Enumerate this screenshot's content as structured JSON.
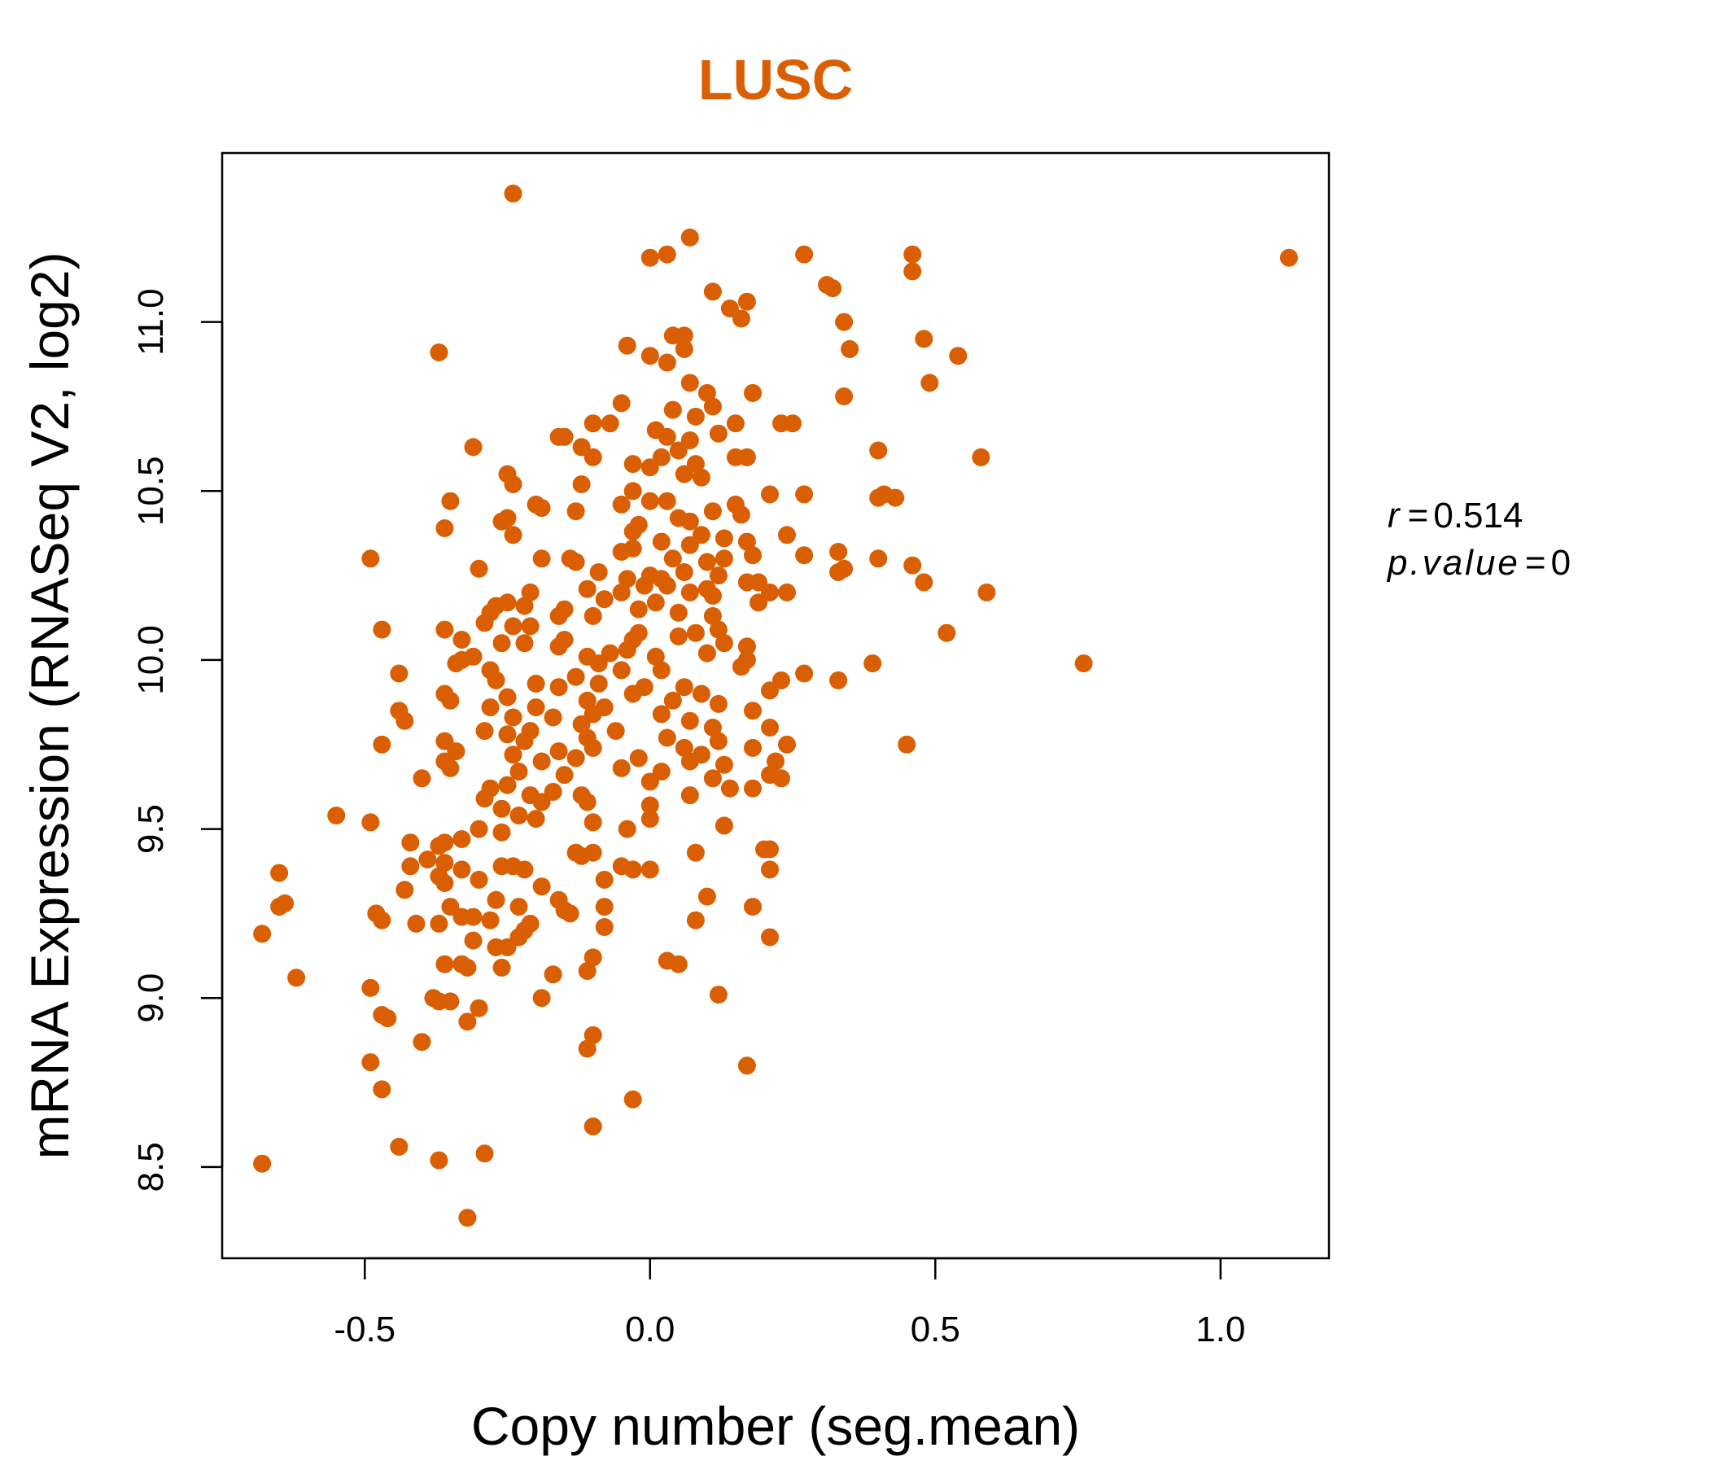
{
  "chart_data": {
    "type": "scatter",
    "title": "LUSC",
    "xlabel": "Copy number (seg.mean)",
    "ylabel": "mRNA Expression (RNASeq V2, log2)",
    "xlim": [
      -0.75,
      1.19
    ],
    "ylim": [
      8.23,
      11.5
    ],
    "x_ticks": [
      "-0.5",
      "0.0",
      "0.5",
      "1.0"
    ],
    "y_ticks": [
      "8.5",
      "9.0",
      "9.5",
      "10.0",
      "10.5",
      "11.0"
    ],
    "grid": false,
    "legend": "none",
    "point_color": "#d95f02",
    "stats": {
      "r_label": "r",
      "r_value": "0.514",
      "p_label": "p.value",
      "p_value": "0"
    },
    "points": [
      [
        1.12,
        11.19
      ],
      [
        0.76,
        9.99
      ],
      [
        -0.24,
        11.38
      ],
      [
        0.07,
        11.25
      ],
      [
        0.0,
        11.19
      ],
      [
        0.03,
        11.2
      ],
      [
        0.27,
        11.2
      ],
      [
        0.46,
        11.2
      ],
      [
        0.46,
        11.15
      ],
      [
        0.31,
        11.11
      ],
      [
        0.32,
        11.1
      ],
      [
        0.11,
        11.09
      ],
      [
        0.17,
        11.06
      ],
      [
        0.14,
        11.04
      ],
      [
        0.16,
        11.01
      ],
      [
        0.34,
        11.0
      ],
      [
        0.48,
        10.95
      ],
      [
        0.04,
        10.96
      ],
      [
        0.06,
        10.96
      ],
      [
        -0.37,
        10.91
      ],
      [
        -0.04,
        10.93
      ],
      [
        0.0,
        10.9
      ],
      [
        0.06,
        10.92
      ],
      [
        0.35,
        10.92
      ],
      [
        0.54,
        10.9
      ],
      [
        0.03,
        10.88
      ],
      [
        0.49,
        10.82
      ],
      [
        0.07,
        10.82
      ],
      [
        0.1,
        10.79
      ],
      [
        0.18,
        10.79
      ],
      [
        0.34,
        10.78
      ],
      [
        -0.05,
        10.76
      ],
      [
        0.11,
        10.75
      ],
      [
        0.04,
        10.74
      ],
      [
        0.08,
        10.72
      ],
      [
        -0.1,
        10.7
      ],
      [
        -0.07,
        10.7
      ],
      [
        0.15,
        10.7
      ],
      [
        0.23,
        10.7
      ],
      [
        0.25,
        10.7
      ],
      [
        0.01,
        10.68
      ],
      [
        0.12,
        10.67
      ],
      [
        0.03,
        10.66
      ],
      [
        -0.16,
        10.66
      ],
      [
        -0.15,
        10.66
      ],
      [
        0.07,
        10.65
      ],
      [
        -0.12,
        10.63
      ],
      [
        0.05,
        10.62
      ],
      [
        -0.31,
        10.63
      ],
      [
        0.4,
        10.62
      ],
      [
        0.17,
        10.6
      ],
      [
        0.15,
        10.6
      ],
      [
        0.58,
        10.6
      ],
      [
        -0.1,
        10.6
      ],
      [
        0.02,
        10.6
      ],
      [
        -0.03,
        10.58
      ],
      [
        0.08,
        10.58
      ],
      [
        0.0,
        10.57
      ],
      [
        -0.25,
        10.55
      ],
      [
        0.06,
        10.55
      ],
      [
        0.09,
        10.54
      ],
      [
        -0.24,
        10.52
      ],
      [
        -0.12,
        10.52
      ],
      [
        -0.03,
        10.5
      ],
      [
        0.21,
        10.49
      ],
      [
        0.27,
        10.49
      ],
      [
        0.4,
        10.48
      ],
      [
        0.41,
        10.49
      ],
      [
        0.43,
        10.48
      ],
      [
        0.0,
        10.47
      ],
      [
        -0.05,
        10.46
      ],
      [
        0.03,
        10.47
      ],
      [
        0.15,
        10.46
      ],
      [
        -0.2,
        10.46
      ],
      [
        -0.19,
        10.45
      ],
      [
        -0.35,
        10.47
      ],
      [
        0.11,
        10.44
      ],
      [
        0.16,
        10.43
      ],
      [
        -0.13,
        10.44
      ],
      [
        -0.25,
        10.42
      ],
      [
        0.05,
        10.42
      ],
      [
        -0.26,
        10.41
      ],
      [
        0.07,
        10.41
      ],
      [
        -0.02,
        10.4
      ],
      [
        -0.36,
        10.39
      ],
      [
        -0.03,
        10.38
      ],
      [
        -0.24,
        10.37
      ],
      [
        0.09,
        10.37
      ],
      [
        0.24,
        10.37
      ],
      [
        0.13,
        10.36
      ],
      [
        0.02,
        10.35
      ],
      [
        0.17,
        10.35
      ],
      [
        0.07,
        10.34
      ],
      [
        -0.03,
        10.33
      ],
      [
        0.33,
        10.32
      ],
      [
        -0.05,
        10.32
      ],
      [
        0.18,
        10.31
      ],
      [
        0.27,
        10.31
      ],
      [
        0.13,
        10.3
      ],
      [
        -0.19,
        10.3
      ],
      [
        -0.14,
        10.3
      ],
      [
        0.04,
        10.3
      ],
      [
        0.1,
        10.29
      ],
      [
        -0.13,
        10.29
      ],
      [
        0.4,
        10.3
      ],
      [
        0.46,
        10.28
      ],
      [
        0.34,
        10.27
      ],
      [
        -0.49,
        10.3
      ],
      [
        -0.3,
        10.27
      ],
      [
        0.33,
        10.26
      ],
      [
        0.06,
        10.26
      ],
      [
        0.0,
        10.25
      ],
      [
        -0.09,
        10.26
      ],
      [
        0.12,
        10.25
      ],
      [
        -0.04,
        10.24
      ],
      [
        0.02,
        10.24
      ],
      [
        0.17,
        10.23
      ],
      [
        0.19,
        10.23
      ],
      [
        0.48,
        10.23
      ],
      [
        -0.01,
        10.22
      ],
      [
        -0.11,
        10.21
      ],
      [
        0.03,
        10.22
      ],
      [
        0.1,
        10.21
      ],
      [
        0.21,
        10.2
      ],
      [
        0.24,
        10.2
      ],
      [
        0.59,
        10.2
      ],
      [
        -0.21,
        10.2
      ],
      [
        -0.05,
        10.2
      ],
      [
        0.07,
        10.2
      ],
      [
        0.11,
        10.19
      ],
      [
        -0.08,
        10.18
      ],
      [
        -0.27,
        10.16
      ],
      [
        -0.25,
        10.17
      ],
      [
        -0.22,
        10.16
      ],
      [
        0.01,
        10.17
      ],
      [
        0.19,
        10.17
      ],
      [
        -0.15,
        10.15
      ],
      [
        -0.02,
        10.15
      ],
      [
        0.05,
        10.14
      ],
      [
        -0.28,
        10.14
      ],
      [
        -0.16,
        10.13
      ],
      [
        0.11,
        10.13
      ],
      [
        -0.1,
        10.13
      ],
      [
        -0.29,
        10.11
      ],
      [
        -0.24,
        10.1
      ],
      [
        -0.21,
        10.1
      ],
      [
        0.12,
        10.09
      ],
      [
        -0.47,
        10.09
      ],
      [
        0.52,
        10.08
      ],
      [
        -0.36,
        10.09
      ],
      [
        0.08,
        10.08
      ],
      [
        -0.02,
        10.08
      ],
      [
        0.05,
        10.07
      ],
      [
        -0.15,
        10.06
      ],
      [
        -0.33,
        10.06
      ],
      [
        0.13,
        10.05
      ],
      [
        -0.03,
        10.06
      ],
      [
        -0.26,
        10.05
      ],
      [
        -0.22,
        10.05
      ],
      [
        -0.16,
        10.04
      ],
      [
        0.17,
        10.04
      ],
      [
        -0.04,
        10.03
      ],
      [
        -0.07,
        10.02
      ],
      [
        0.1,
        10.02
      ],
      [
        -0.31,
        10.01
      ],
      [
        0.01,
        10.01
      ],
      [
        -0.11,
        10.01
      ],
      [
        0.17,
        10.0
      ],
      [
        -0.33,
        10.0
      ],
      [
        0.39,
        9.99
      ],
      [
        -0.34,
        9.99
      ],
      [
        -0.09,
        9.99
      ],
      [
        0.16,
        9.98
      ],
      [
        -0.28,
        9.97
      ],
      [
        -0.05,
        9.97
      ],
      [
        0.02,
        9.97
      ],
      [
        0.27,
        9.96
      ],
      [
        -0.44,
        9.96
      ],
      [
        -0.13,
        9.95
      ],
      [
        0.23,
        9.94
      ],
      [
        0.33,
        9.94
      ],
      [
        -0.27,
        9.94
      ],
      [
        -0.2,
        9.93
      ],
      [
        -0.09,
        9.93
      ],
      [
        -0.01,
        9.92
      ],
      [
        0.06,
        9.92
      ],
      [
        -0.16,
        9.92
      ],
      [
        0.21,
        9.91
      ],
      [
        -0.36,
        9.9
      ],
      [
        0.09,
        9.9
      ],
      [
        -0.03,
        9.9
      ],
      [
        -0.25,
        9.89
      ],
      [
        -0.11,
        9.88
      ],
      [
        0.04,
        9.88
      ],
      [
        -0.35,
        9.88
      ],
      [
        0.12,
        9.87
      ],
      [
        -0.28,
        9.86
      ],
      [
        -0.2,
        9.86
      ],
      [
        -0.08,
        9.86
      ],
      [
        0.18,
        9.85
      ],
      [
        -0.44,
        9.85
      ],
      [
        0.02,
        9.84
      ],
      [
        -0.1,
        9.84
      ],
      [
        -0.24,
        9.83
      ],
      [
        -0.17,
        9.83
      ],
      [
        0.07,
        9.82
      ],
      [
        -0.43,
        9.82
      ],
      [
        -0.12,
        9.81
      ],
      [
        0.21,
        9.8
      ],
      [
        0.11,
        9.8
      ],
      [
        -0.29,
        9.79
      ],
      [
        -0.21,
        9.79
      ],
      [
        -0.06,
        9.79
      ],
      [
        -0.25,
        9.78
      ],
      [
        -0.11,
        9.77
      ],
      [
        0.03,
        9.77
      ],
      [
        -0.36,
        9.76
      ],
      [
        -0.22,
        9.76
      ],
      [
        0.12,
        9.76
      ],
      [
        0.24,
        9.75
      ],
      [
        -0.47,
        9.75
      ],
      [
        0.45,
        9.75
      ],
      [
        -0.1,
        9.74
      ],
      [
        0.06,
        9.74
      ],
      [
        0.18,
        9.74
      ],
      [
        -0.16,
        9.73
      ],
      [
        -0.34,
        9.73
      ],
      [
        -0.24,
        9.72
      ],
      [
        0.09,
        9.72
      ],
      [
        -0.13,
        9.71
      ],
      [
        -0.02,
        9.71
      ],
      [
        0.22,
        9.7
      ],
      [
        -0.36,
        9.7
      ],
      [
        -0.19,
        9.7
      ],
      [
        0.07,
        9.7
      ],
      [
        0.13,
        9.69
      ],
      [
        -0.35,
        9.68
      ],
      [
        -0.05,
        9.68
      ],
      [
        0.02,
        9.67
      ],
      [
        -0.23,
        9.67
      ],
      [
        0.21,
        9.66
      ],
      [
        -0.15,
        9.66
      ],
      [
        0.11,
        9.65
      ],
      [
        0.23,
        9.65
      ],
      [
        -0.4,
        9.65
      ],
      [
        0.0,
        9.64
      ],
      [
        -0.25,
        9.63
      ],
      [
        -0.28,
        9.62
      ],
      [
        0.14,
        9.62
      ],
      [
        0.18,
        9.62
      ],
      [
        -0.17,
        9.61
      ],
      [
        -0.21,
        9.6
      ],
      [
        -0.12,
        9.6
      ],
      [
        0.07,
        9.6
      ],
      [
        -0.29,
        9.59
      ],
      [
        -0.19,
        9.58
      ],
      [
        -0.11,
        9.58
      ],
      [
        0.0,
        9.57
      ],
      [
        -0.26,
        9.56
      ],
      [
        -0.55,
        9.54
      ],
      [
        -0.23,
        9.54
      ],
      [
        0.0,
        9.53
      ],
      [
        -0.2,
        9.53
      ],
      [
        -0.49,
        9.52
      ],
      [
        -0.1,
        9.52
      ],
      [
        0.13,
        9.51
      ],
      [
        -0.3,
        9.5
      ],
      [
        -0.04,
        9.5
      ],
      [
        -0.26,
        9.49
      ],
      [
        -0.33,
        9.47
      ],
      [
        -0.42,
        9.46
      ],
      [
        -0.36,
        9.46
      ],
      [
        0.2,
        9.44
      ],
      [
        0.21,
        9.44
      ],
      [
        -0.37,
        9.45
      ],
      [
        -0.13,
        9.43
      ],
      [
        -0.1,
        9.43
      ],
      [
        0.08,
        9.43
      ],
      [
        -0.12,
        9.42
      ],
      [
        -0.39,
        9.41
      ],
      [
        -0.36,
        9.4
      ],
      [
        -0.26,
        9.39
      ],
      [
        -0.24,
        9.39
      ],
      [
        -0.22,
        9.38
      ],
      [
        -0.05,
        9.39
      ],
      [
        -0.03,
        9.38
      ],
      [
        0.0,
        9.38
      ],
      [
        0.21,
        9.38
      ],
      [
        -0.65,
        9.37
      ],
      [
        -0.42,
        9.39
      ],
      [
        -0.33,
        9.38
      ],
      [
        -0.37,
        9.36
      ],
      [
        -0.3,
        9.35
      ],
      [
        -0.08,
        9.35
      ],
      [
        -0.36,
        9.34
      ],
      [
        -0.19,
        9.33
      ],
      [
        -0.43,
        9.32
      ],
      [
        0.1,
        9.3
      ],
      [
        -0.16,
        9.29
      ],
      [
        -0.27,
        9.29
      ],
      [
        -0.64,
        9.28
      ],
      [
        -0.65,
        9.27
      ],
      [
        0.18,
        9.27
      ],
      [
        -0.08,
        9.27
      ],
      [
        -0.35,
        9.27
      ],
      [
        -0.23,
        9.27
      ],
      [
        -0.15,
        9.26
      ],
      [
        -0.14,
        9.25
      ],
      [
        -0.48,
        9.25
      ],
      [
        -0.31,
        9.24
      ],
      [
        -0.33,
        9.24
      ],
      [
        -0.28,
        9.23
      ],
      [
        0.08,
        9.23
      ],
      [
        -0.47,
        9.23
      ],
      [
        -0.37,
        9.22
      ],
      [
        -0.41,
        9.22
      ],
      [
        -0.21,
        9.22
      ],
      [
        -0.08,
        9.21
      ],
      [
        -0.22,
        9.2
      ],
      [
        -0.68,
        9.19
      ],
      [
        -0.23,
        9.18
      ],
      [
        0.21,
        9.18
      ],
      [
        -0.31,
        9.17
      ],
      [
        -0.27,
        9.15
      ],
      [
        -0.25,
        9.15
      ],
      [
        -0.1,
        9.12
      ],
      [
        0.03,
        9.11
      ],
      [
        0.05,
        9.1
      ],
      [
        -0.36,
        9.1
      ],
      [
        -0.33,
        9.1
      ],
      [
        -0.32,
        9.09
      ],
      [
        -0.26,
        9.09
      ],
      [
        -0.11,
        9.08
      ],
      [
        -0.17,
        9.07
      ],
      [
        -0.62,
        9.06
      ],
      [
        -0.49,
        9.03
      ],
      [
        0.12,
        9.01
      ],
      [
        -0.19,
        9.0
      ],
      [
        -0.38,
        9.0
      ],
      [
        -0.37,
        8.99
      ],
      [
        -0.35,
        8.99
      ],
      [
        -0.3,
        8.97
      ],
      [
        -0.47,
        8.95
      ],
      [
        -0.46,
        8.94
      ],
      [
        -0.32,
        8.93
      ],
      [
        -0.1,
        8.89
      ],
      [
        -0.4,
        8.87
      ],
      [
        -0.11,
        8.85
      ],
      [
        -0.49,
        8.81
      ],
      [
        0.17,
        8.8
      ],
      [
        -0.47,
        8.73
      ],
      [
        -0.03,
        8.7
      ],
      [
        -0.1,
        8.62
      ],
      [
        -0.44,
        8.56
      ],
      [
        -0.29,
        8.54
      ],
      [
        -0.37,
        8.52
      ],
      [
        -0.68,
        8.51
      ],
      [
        -0.32,
        8.35
      ]
    ]
  }
}
